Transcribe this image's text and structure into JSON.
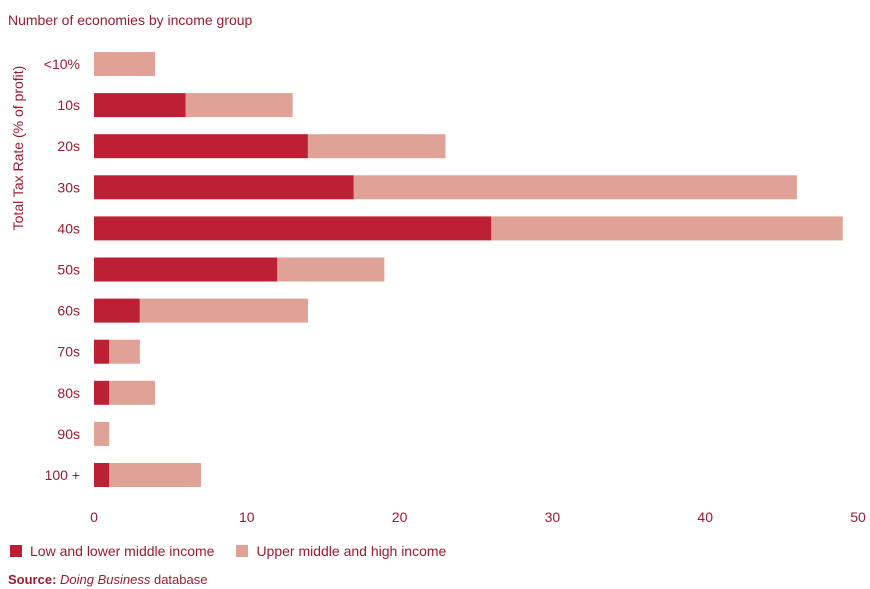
{
  "chart_data": {
    "type": "bar",
    "orientation": "horizontal",
    "stacked": true,
    "title": "Number of economies by income group",
    "ylabel": "Total Tax Rate (% of profit)",
    "xlabel": "",
    "categories": [
      "<10%",
      "10s",
      "20s",
      "30s",
      "40s",
      "50s",
      "60s",
      "70s",
      "80s",
      "90s",
      "100 +"
    ],
    "series": [
      {
        "name": "Low and lower middle income",
        "color": "#bb2034",
        "values": [
          0,
          6,
          14,
          17,
          26,
          12,
          3,
          1,
          1,
          0,
          1
        ]
      },
      {
        "name": "Upper middle and high income",
        "color": "#e0a196",
        "values": [
          4,
          7,
          9,
          29,
          23,
          7,
          11,
          2,
          3,
          1,
          6
        ]
      }
    ],
    "xlim": [
      0,
      50
    ],
    "xticks": [
      0,
      10,
      20,
      30,
      40,
      50
    ],
    "grid": false,
    "legend_position": "bottom-left"
  },
  "source": {
    "label": "Source:",
    "name": "Doing Business",
    "suffix": " database"
  }
}
